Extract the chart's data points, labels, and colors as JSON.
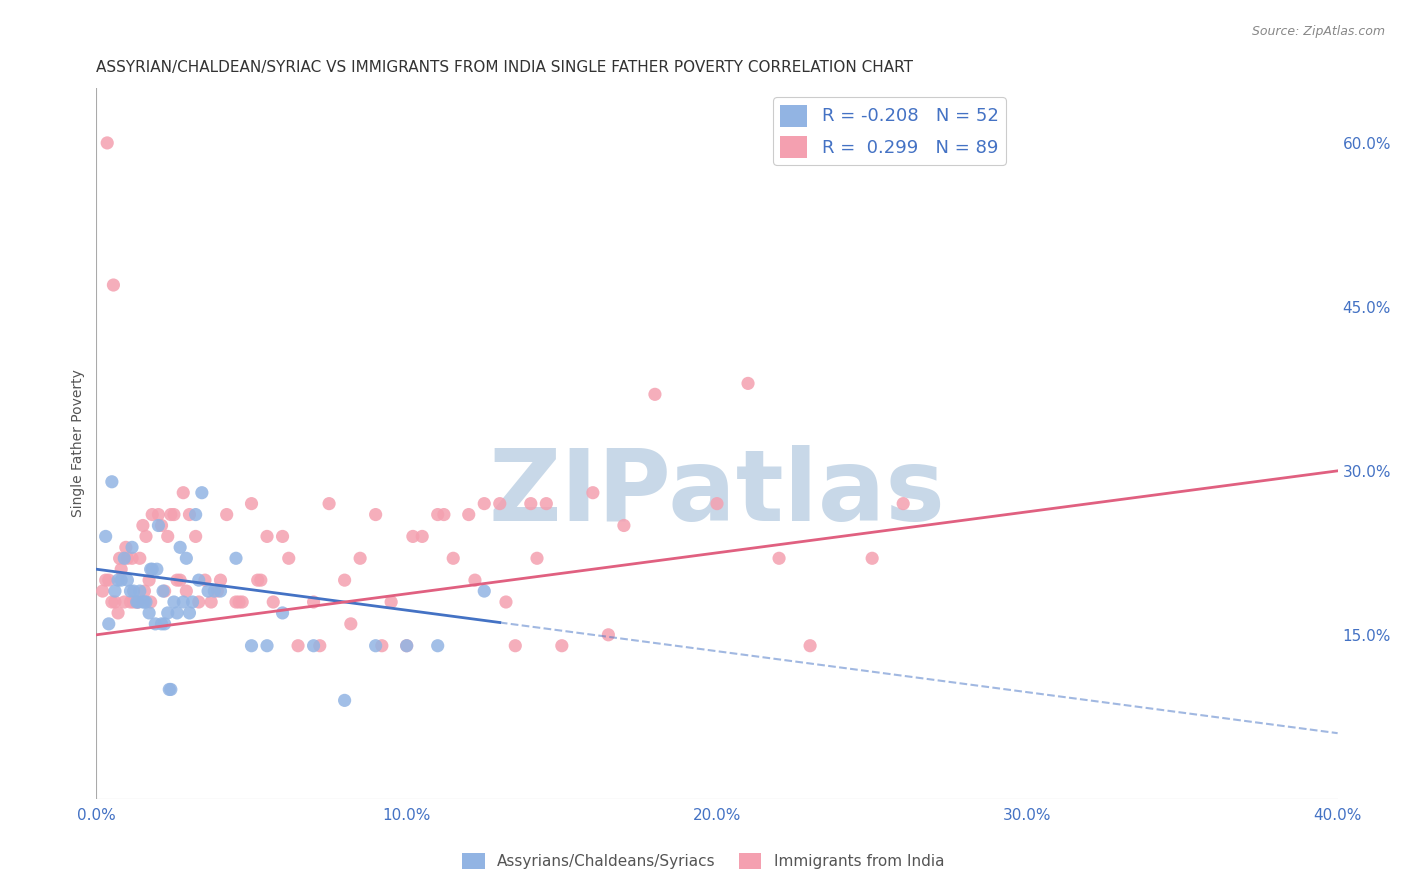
{
  "title": "ASSYRIAN/CHALDEAN/SYRIAC VS IMMIGRANTS FROM INDIA SINGLE FATHER POVERTY CORRELATION CHART",
  "source": "Source: ZipAtlas.com",
  "ylabel": "Single Father Poverty",
  "x_tick_labels": [
    "0.0%",
    "10.0%",
    "20.0%",
    "30.0%",
    "40.0%"
  ],
  "x_tick_values": [
    0,
    10,
    20,
    30,
    40
  ],
  "y_tick_labels_right": [
    "15.0%",
    "30.0%",
    "45.0%",
    "60.0%"
  ],
  "y_tick_values_right": [
    15,
    30,
    45,
    60
  ],
  "xlim": [
    0,
    40
  ],
  "ylim": [
    0,
    65
  ],
  "blue_R": -0.208,
  "blue_N": 52,
  "pink_R": 0.299,
  "pink_N": 89,
  "blue_color": "#92b4e3",
  "pink_color": "#f4a0b0",
  "blue_label": "Assyrians/Chaldeans/Syriacs",
  "pink_label": "Immigrants from India",
  "watermark": "ZIPatlas",
  "watermark_color": "#c8d8e8",
  "blue_scatter_x": [
    0.3,
    0.5,
    0.7,
    0.8,
    1.0,
    1.1,
    1.2,
    1.3,
    1.4,
    1.5,
    1.6,
    1.7,
    1.8,
    1.9,
    2.0,
    2.1,
    2.2,
    2.3,
    2.4,
    2.5,
    2.6,
    2.7,
    2.8,
    2.9,
    3.0,
    3.2,
    3.4,
    3.6,
    3.8,
    4.0,
    4.5,
    5.0,
    5.5,
    6.0,
    7.0,
    8.0,
    9.0,
    10.0,
    11.0,
    12.5,
    0.4,
    0.6,
    0.9,
    1.15,
    1.35,
    1.55,
    1.75,
    1.95,
    2.15,
    2.35,
    3.1,
    3.3
  ],
  "blue_scatter_y": [
    24,
    29,
    20,
    20,
    20,
    19,
    19,
    18,
    19,
    18,
    18,
    17,
    21,
    16,
    25,
    16,
    16,
    17,
    10,
    18,
    17,
    23,
    18,
    22,
    17,
    26,
    28,
    19,
    19,
    19,
    22,
    14,
    14,
    17,
    14,
    9,
    14,
    14,
    14,
    19,
    16,
    19,
    22,
    23,
    18,
    18,
    21,
    21,
    19,
    10,
    18,
    20
  ],
  "pink_scatter_x": [
    0.2,
    0.3,
    0.4,
    0.5,
    0.6,
    0.7,
    0.8,
    0.9,
    1.0,
    1.1,
    1.2,
    1.3,
    1.5,
    1.7,
    2.0,
    2.2,
    2.5,
    2.7,
    3.0,
    3.5,
    4.0,
    4.5,
    5.0,
    5.5,
    6.0,
    7.0,
    8.0,
    9.0,
    10.0,
    11.0,
    12.0,
    13.0,
    14.0,
    15.0,
    17.0,
    20.0,
    22.0,
    25.0,
    1.4,
    1.6,
    1.8,
    2.1,
    2.3,
    2.6,
    2.9,
    3.2,
    3.7,
    4.2,
    4.7,
    5.2,
    5.7,
    6.5,
    7.5,
    8.5,
    9.5,
    10.5,
    11.5,
    12.5,
    13.5,
    14.5,
    16.0,
    18.0,
    21.0,
    23.0,
    26.0,
    0.35,
    0.55,
    0.75,
    0.95,
    1.15,
    1.35,
    1.55,
    1.75,
    2.4,
    2.8,
    3.3,
    3.9,
    4.6,
    5.3,
    6.2,
    7.2,
    8.2,
    9.2,
    10.2,
    11.2,
    12.2,
    13.2,
    14.2,
    16.5
  ],
  "pink_scatter_y": [
    19,
    20,
    20,
    18,
    18,
    17,
    21,
    18,
    22,
    18,
    18,
    18,
    25,
    20,
    26,
    19,
    26,
    20,
    26,
    20,
    20,
    18,
    27,
    24,
    24,
    18,
    20,
    26,
    14,
    26,
    26,
    27,
    27,
    14,
    25,
    27,
    22,
    22,
    22,
    24,
    26,
    25,
    24,
    20,
    19,
    24,
    18,
    26,
    18,
    20,
    18,
    14,
    27,
    22,
    18,
    24,
    22,
    27,
    14,
    27,
    28,
    37,
    38,
    14,
    27,
    60,
    47,
    22,
    23,
    22,
    18,
    19,
    18,
    26,
    28,
    18,
    19,
    18,
    20,
    22,
    14,
    16,
    14,
    24,
    26,
    20,
    18,
    22,
    15
  ],
  "blue_trendline_x": [
    0,
    40
  ],
  "blue_trendline_y_start": 21,
  "blue_trendline_y_end": 6,
  "pink_trendline_x": [
    0,
    40
  ],
  "pink_trendline_y_start": 15,
  "pink_trendline_y_end": 30,
  "background_color": "#ffffff",
  "grid_color": "#dddddd",
  "title_color": "#333333",
  "title_fontsize": 11,
  "axis_label_color": "#4472c4",
  "legend_fontsize": 13
}
